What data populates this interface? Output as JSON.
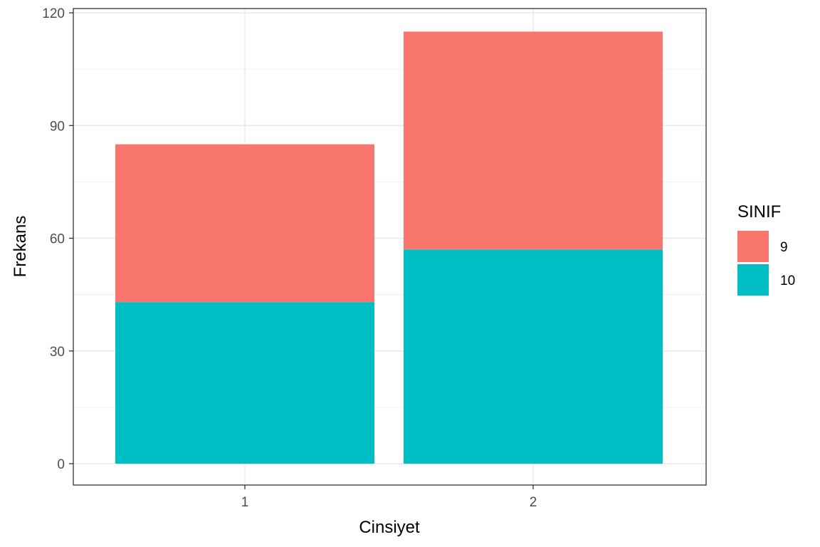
{
  "chart_data": {
    "type": "bar",
    "stacked": true,
    "categories": [
      "1",
      "2"
    ],
    "series": [
      {
        "name": "9",
        "values": [
          42,
          58
        ],
        "color": "#F8766D"
      },
      {
        "name": "10",
        "values": [
          43,
          57
        ],
        "color": "#00BFC4"
      }
    ],
    "xlabel": "Cinsiyet",
    "ylabel": "Frekans",
    "ylim": [
      0,
      120
    ],
    "yticks": [
      "0",
      "30",
      "60",
      "90",
      "120"
    ],
    "ytick_values": [
      0,
      30,
      60,
      90,
      120
    ],
    "grid": true,
    "legend": {
      "title": "SINIF",
      "position": "right",
      "entries": [
        "9",
        "10"
      ]
    }
  }
}
